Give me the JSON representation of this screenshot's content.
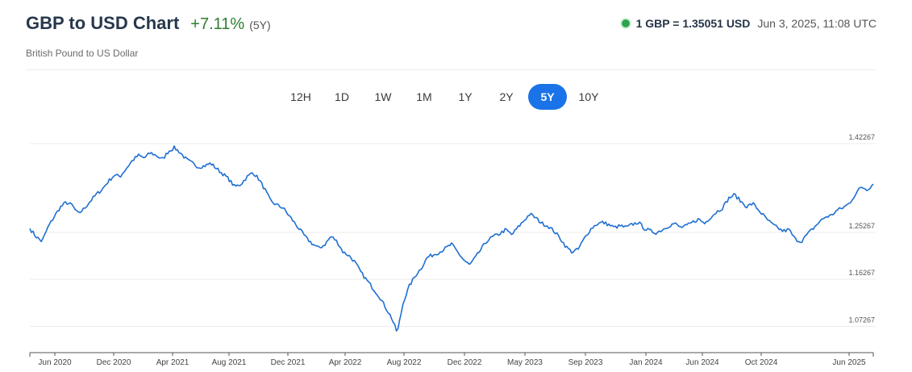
{
  "header": {
    "title": "GBP to USD Chart",
    "change": "+7.11%",
    "period": "(5Y)",
    "subtitle": "British Pound to US Dollar",
    "rate": "1 GBP = 1.35051 USD",
    "timestamp": "Jun 3, 2025, 11:08 UTC"
  },
  "ranges": [
    {
      "label": "12H",
      "active": false
    },
    {
      "label": "1D",
      "active": false
    },
    {
      "label": "1W",
      "active": false
    },
    {
      "label": "1M",
      "active": false
    },
    {
      "label": "1Y",
      "active": false
    },
    {
      "label": "2Y",
      "active": false
    },
    {
      "label": "5Y",
      "active": true
    },
    {
      "label": "10Y",
      "active": false
    }
  ],
  "colors": {
    "line": "#1f6fd1",
    "accent": "#1a73e8",
    "positive": "#2e7d32",
    "live": "#2ea44f"
  },
  "chart_data": {
    "type": "line",
    "title": "",
    "xlabel": "",
    "ylabel": "",
    "grid": true,
    "ylim": [
      1.03,
      1.42267
    ],
    "y_ticks": [
      {
        "value": 1.42267,
        "label": "1.42267"
      },
      {
        "value": 1.25267,
        "label": "1.25267"
      },
      {
        "value": 1.16267,
        "label": "1.16267"
      },
      {
        "value": 1.07267,
        "label": "1.07267"
      }
    ],
    "x_ticks": [
      "Jun 2020",
      "Dec 2020",
      "Apr 2021",
      "Aug 2021",
      "Dec 2021",
      "Apr 2022",
      "Aug 2022",
      "Dec 2022",
      "May 2023",
      "Sep 2023",
      "Jan 2024",
      "Jun 2024",
      "Oct 2024",
      "Jun 2025"
    ],
    "series": [
      {
        "values": [
          1.26,
          1.245,
          1.235,
          1.262,
          1.282,
          1.3,
          1.31,
          1.305,
          1.288,
          1.298,
          1.312,
          1.325,
          1.335,
          1.35,
          1.362,
          1.36,
          1.375,
          1.39,
          1.4,
          1.395,
          1.405,
          1.4,
          1.392,
          1.408,
          1.415,
          1.405,
          1.392,
          1.385,
          1.378,
          1.38,
          1.385,
          1.375,
          1.365,
          1.355,
          1.34,
          1.345,
          1.358,
          1.368,
          1.355,
          1.335,
          1.312,
          1.305,
          1.3,
          1.285,
          1.27,
          1.255,
          1.24,
          1.23,
          1.222,
          1.23,
          1.245,
          1.235,
          1.215,
          1.208,
          1.195,
          1.175,
          1.16,
          1.145,
          1.13,
          1.11,
          1.09,
          1.06,
          1.12,
          1.15,
          1.17,
          1.185,
          1.205,
          1.21,
          1.215,
          1.222,
          1.23,
          1.215,
          1.2,
          1.19,
          1.205,
          1.222,
          1.238,
          1.245,
          1.25,
          1.258,
          1.248,
          1.262,
          1.275,
          1.288,
          1.28,
          1.27,
          1.265,
          1.255,
          1.242,
          1.225,
          1.215,
          1.22,
          1.24,
          1.258,
          1.268,
          1.272,
          1.268,
          1.262,
          1.265,
          1.262,
          1.268,
          1.272,
          1.26,
          1.255,
          1.252,
          1.258,
          1.265,
          1.27,
          1.262,
          1.265,
          1.272,
          1.278,
          1.27,
          1.282,
          1.292,
          1.3,
          1.318,
          1.325,
          1.312,
          1.302,
          1.308,
          1.295,
          1.282,
          1.27,
          1.262,
          1.255,
          1.258,
          1.24,
          1.235,
          1.248,
          1.26,
          1.272,
          1.282,
          1.285,
          1.295,
          1.3,
          1.308,
          1.325,
          1.34,
          1.335,
          1.345
        ]
      }
    ]
  }
}
